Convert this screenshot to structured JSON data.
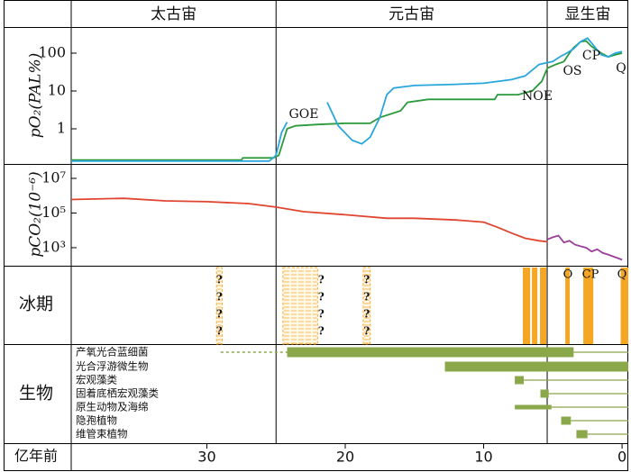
{
  "eons": {
    "names": [
      "太古宙",
      "元古宙",
      "显生宙"
    ],
    "boundaries": [
      25,
      5.41
    ]
  },
  "chart_data": [
    {
      "type": "line",
      "ylabel": "pO₂(PAL%)",
      "log": true,
      "ylim": [
        0.118,
        490
      ],
      "yticks": [
        1,
        10,
        100
      ],
      "xlim": [
        39.8,
        -0.45
      ],
      "annotations": [
        "GOE",
        "NOE",
        "OS",
        "CP",
        "Q"
      ],
      "series": [
        {
          "color": "#2a9a3a",
          "x": [
            39.8,
            30,
            27.5,
            27.4,
            25.2,
            24.8,
            24.2,
            23.6,
            22,
            20,
            18.2,
            17.5,
            16,
            15.5,
            14,
            12,
            10,
            9.2,
            9,
            7.5,
            7,
            6.5,
            5.8,
            5.4,
            4.8,
            4.2,
            3.8,
            3.5,
            3,
            2.6,
            2.2,
            1.5,
            1,
            0.5,
            0
          ],
          "values": [
            0.15,
            0.15,
            0.15,
            0.17,
            0.17,
            0.2,
            1.0,
            1.2,
            1.3,
            1.4,
            1.4,
            2,
            3,
            5,
            6,
            6,
            6,
            6,
            8,
            8,
            9,
            10,
            18,
            40,
            50,
            60,
            100,
            140,
            200,
            210,
            150,
            100,
            80,
            90,
            100
          ]
        },
        {
          "color": "#2aa6de",
          "x": [
            39.8,
            30,
            25.5,
            25,
            24.6,
            24.2,
            null,
            21.3,
            20.5,
            19.5,
            18.8,
            18.2,
            17.5,
            17,
            16.5,
            15,
            12,
            10,
            8,
            7,
            6,
            5.5,
            5,
            4.5,
            4,
            3.5,
            3,
            2.5,
            2,
            1.5,
            1,
            0.5,
            0
          ],
          "values": [
            0.14,
            0.14,
            0.14,
            0.2,
            0.8,
            1.5,
            null,
            5,
            1.2,
            0.5,
            0.4,
            0.6,
            2,
            8,
            12,
            14,
            15,
            16,
            20,
            25,
            50,
            55,
            60,
            80,
            100,
            130,
            200,
            250,
            150,
            90,
            80,
            100,
            110
          ]
        }
      ]
    },
    {
      "type": "line",
      "ylabel": "pCO₂(10⁻⁶)",
      "log": true,
      "ylim": [
        91,
        68000000
      ],
      "yticks": [
        {
          "value": 1000,
          "label": "10³"
        },
        {
          "value": 100000,
          "label": "10⁵"
        },
        {
          "value": 10000000,
          "label": "10⁷"
        }
      ],
      "series": [
        {
          "color": "#e04530",
          "x": [
            39.8,
            36,
            33,
            30,
            27,
            25,
            23,
            20,
            17,
            15,
            12,
            10,
            9,
            8,
            7,
            6,
            5.4
          ],
          "values": [
            600000,
            700000,
            500000,
            450000,
            350000,
            220000,
            120000,
            80000,
            50000,
            50000,
            40000,
            30000,
            15000,
            7000,
            3500,
            2500,
            2200
          ]
        },
        {
          "color": "#9b3d9b",
          "x": [
            5.4,
            5,
            4.6,
            4.2,
            3.8,
            3.4,
            3,
            2.6,
            2.2,
            1.8,
            1.4,
            1,
            0.6,
            0.3,
            0
          ],
          "values": [
            3000,
            4000,
            5000,
            2000,
            2500,
            1500,
            1200,
            1000,
            600,
            800,
            500,
            400,
            300,
            250,
            200
          ]
        }
      ]
    },
    {
      "type": "interval",
      "ylabel": "冰期",
      "color": "#f5a623",
      "intervals": [
        {
          "start": 29.3,
          "end": 28.9,
          "label": "?"
        },
        {
          "start": 24.5,
          "end": 22,
          "label": "?"
        },
        {
          "start": 18.7,
          "end": 18.2,
          "label": "?"
        },
        {
          "start": 7.17,
          "end": 6.64
        },
        {
          "start": 6.51,
          "end": 6.12
        },
        {
          "start": 5.93,
          "end": 5.47
        },
        {
          "start": 4.1,
          "end": 3.78
        },
        {
          "start": 2.8,
          "end": 2.08
        },
        {
          "start": 0.1,
          "end": -0.45
        }
      ],
      "annotations": [
        "O",
        "CP",
        "Q"
      ]
    },
    {
      "type": "range",
      "ylabel": "生物",
      "color": "#8aa84a",
      "xlabel": "亿年前",
      "xlim": [
        39.8,
        -0.45
      ],
      "xticks": [
        30,
        20,
        10,
        0
      ],
      "ranges": [
        {
          "name": "产氧光合蓝细菌",
          "start": 24.2,
          "end": 3.5,
          "dashed_start": 29
        },
        {
          "name": "光合浮游微生物",
          "start": 12.8,
          "end": -0.45
        },
        {
          "name": "宏观藻类",
          "start": 7.75,
          "end": 7.1
        },
        {
          "name": "固着底栖宏观藻类",
          "start": 5.9,
          "end": 5.3
        },
        {
          "name": "原生动物及海绵",
          "start": 7.75,
          "end": 5.1
        },
        {
          "name": "隐孢植物",
          "start": 4.4,
          "end": 3.7
        },
        {
          "name": "维管束植物",
          "start": 3.3,
          "end": 2.5
        }
      ]
    }
  ]
}
